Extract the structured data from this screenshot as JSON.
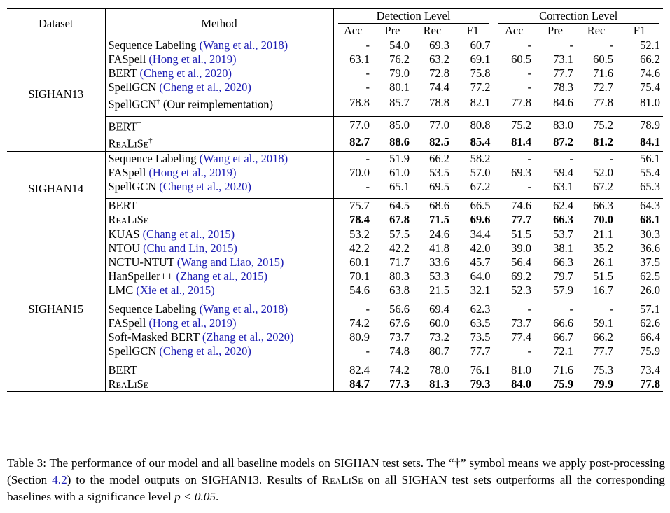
{
  "headers": {
    "dataset": "Dataset",
    "method": "Method",
    "detection": "Detection Level",
    "correction": "Correction Level",
    "metrics": [
      "Acc",
      "Pre",
      "Rec",
      "F1"
    ]
  },
  "groups": [
    {
      "name": "SIGHAN13",
      "blocks": [
        [
          {
            "method": "Sequence Labeling ",
            "cite": "(Wang et al., 2018)",
            "sup": "",
            "vals": [
              "-",
              "54.0",
              "69.3",
              "60.7",
              "-",
              "-",
              "-",
              "52.1"
            ],
            "bold": false,
            "sc": false
          },
          {
            "method": "FASpell ",
            "cite": "(Hong et al., 2019)",
            "sup": "",
            "vals": [
              "63.1",
              "76.2",
              "63.2",
              "69.1",
              "60.5",
              "73.1",
              "60.5",
              "66.2"
            ],
            "bold": false,
            "sc": false
          },
          {
            "method": "BERT ",
            "cite": "(Cheng et al., 2020)",
            "sup": "",
            "vals": [
              "-",
              "79.0",
              "72.8",
              "75.8",
              "-",
              "77.7",
              "71.6",
              "74.6"
            ],
            "bold": false,
            "sc": false
          },
          {
            "method": "SpellGCN ",
            "cite": "(Cheng et al., 2020)",
            "sup": "",
            "vals": [
              "-",
              "80.1",
              "74.4",
              "77.2",
              "-",
              "78.3",
              "72.7",
              "75.4"
            ],
            "bold": false,
            "sc": false
          },
          {
            "method": "SpellGCN",
            "cite": "",
            "sup": "†",
            "after": " (Our reimplementation)",
            "vals": [
              "78.8",
              "85.7",
              "78.8",
              "82.1",
              "77.8",
              "84.6",
              "77.8",
              "81.0"
            ],
            "bold": false,
            "sc": false
          }
        ],
        [
          {
            "method": "BERT",
            "cite": "",
            "sup": "†",
            "vals": [
              "77.0",
              "85.0",
              "77.0",
              "80.8",
              "75.2",
              "83.0",
              "75.2",
              "78.9"
            ],
            "bold": false,
            "sc": false
          },
          {
            "method": "ReaLiSe",
            "cite": "",
            "sup": "†",
            "vals": [
              "82.7",
              "88.6",
              "82.5",
              "85.4",
              "81.4",
              "87.2",
              "81.2",
              "84.1"
            ],
            "bold": true,
            "sc": true
          }
        ]
      ]
    },
    {
      "name": "SIGHAN14",
      "blocks": [
        [
          {
            "method": "Sequence Labeling ",
            "cite": "(Wang et al., 2018)",
            "sup": "",
            "vals": [
              "-",
              "51.9",
              "66.2",
              "58.2",
              "-",
              "-",
              "-",
              "56.1"
            ],
            "bold": false,
            "sc": false
          },
          {
            "method": "FASpell ",
            "cite": "(Hong et al., 2019)",
            "sup": "",
            "vals": [
              "70.0",
              "61.0",
              "53.5",
              "57.0",
              "69.3",
              "59.4",
              "52.0",
              "55.4"
            ],
            "bold": false,
            "sc": false
          },
          {
            "method": "SpellGCN ",
            "cite": "(Cheng et al., 2020)",
            "sup": "",
            "vals": [
              "-",
              "65.1",
              "69.5",
              "67.2",
              "-",
              "63.1",
              "67.2",
              "65.3"
            ],
            "bold": false,
            "sc": false
          }
        ],
        [
          {
            "method": "BERT",
            "cite": "",
            "sup": "",
            "vals": [
              "75.7",
              "64.5",
              "68.6",
              "66.5",
              "74.6",
              "62.4",
              "66.3",
              "64.3"
            ],
            "bold": false,
            "sc": false
          },
          {
            "method": "ReaLiSe",
            "cite": "",
            "sup": "",
            "vals": [
              "78.4",
              "67.8",
              "71.5",
              "69.6",
              "77.7",
              "66.3",
              "70.0",
              "68.1"
            ],
            "bold": true,
            "sc": true
          }
        ]
      ]
    },
    {
      "name": "SIGHAN15",
      "blocks": [
        [
          {
            "method": "KUAS ",
            "cite": "(Chang et al., 2015)",
            "sup": "",
            "vals": [
              "53.2",
              "57.5",
              "24.6",
              "34.4",
              "51.5",
              "53.7",
              "21.1",
              "30.3"
            ],
            "bold": false,
            "sc": false
          },
          {
            "method": "NTOU ",
            "cite": "(Chu and Lin, 2015)",
            "sup": "",
            "vals": [
              "42.2",
              "42.2",
              "41.8",
              "42.0",
              "39.0",
              "38.1",
              "35.2",
              "36.6"
            ],
            "bold": false,
            "sc": false
          },
          {
            "method": "NCTU-NTUT ",
            "cite": "(Wang and Liao, 2015)",
            "sup": "",
            "vals": [
              "60.1",
              "71.7",
              "33.6",
              "45.7",
              "56.4",
              "66.3",
              "26.1",
              "37.5"
            ],
            "bold": false,
            "sc": false
          },
          {
            "method": "HanSpeller++ ",
            "cite": "(Zhang et al., 2015)",
            "sup": "",
            "vals": [
              "70.1",
              "80.3",
              "53.3",
              "64.0",
              "69.2",
              "79.7",
              "51.5",
              "62.5"
            ],
            "bold": false,
            "sc": false
          },
          {
            "method": "LMC ",
            "cite": "(Xie et al., 2015)",
            "sup": "",
            "vals": [
              "54.6",
              "63.8",
              "21.5",
              "32.1",
              "52.3",
              "57.9",
              "16.7",
              "26.0"
            ],
            "bold": false,
            "sc": false
          }
        ],
        [
          {
            "method": "Sequence Labeling ",
            "cite": "(Wang et al., 2018)",
            "sup": "",
            "vals": [
              "-",
              "56.6",
              "69.4",
              "62.3",
              "-",
              "-",
              "-",
              "57.1"
            ],
            "bold": false,
            "sc": false
          },
          {
            "method": "FASpell ",
            "cite": "(Hong et al., 2019)",
            "sup": "",
            "vals": [
              "74.2",
              "67.6",
              "60.0",
              "63.5",
              "73.7",
              "66.6",
              "59.1",
              "62.6"
            ],
            "bold": false,
            "sc": false
          },
          {
            "method": "Soft-Masked BERT ",
            "cite": "(Zhang et al., 2020)",
            "sup": "",
            "vals": [
              "80.9",
              "73.7",
              "73.2",
              "73.5",
              "77.4",
              "66.7",
              "66.2",
              "66.4"
            ],
            "bold": false,
            "sc": false
          },
          {
            "method": "SpellGCN ",
            "cite": "(Cheng et al., 2020)",
            "sup": "",
            "vals": [
              "-",
              "74.8",
              "80.7",
              "77.7",
              "-",
              "72.1",
              "77.7",
              "75.9"
            ],
            "bold": false,
            "sc": false
          }
        ],
        [
          {
            "method": "BERT",
            "cite": "",
            "sup": "",
            "vals": [
              "82.4",
              "74.2",
              "78.0",
              "76.1",
              "81.0",
              "71.6",
              "75.3",
              "73.4"
            ],
            "bold": false,
            "sc": false
          },
          {
            "method": "ReaLiSe",
            "cite": "",
            "sup": "",
            "vals": [
              "84.7",
              "77.3",
              "81.3",
              "79.3",
              "84.0",
              "75.9",
              "79.9",
              "77.8"
            ],
            "bold": true,
            "sc": true
          }
        ]
      ]
    }
  ],
  "caption": {
    "part1": "Table 3: The performance of our model and all baseline models on SIGHAN test sets. The “†” symbol means we apply post-processing (Section ",
    "section": "4.2",
    "part2": ") to the model outputs on SIGHAN13. Results of ",
    "model": "ReaLiSe",
    "part3": " on all SIGHAN test sets outperforms all the corresponding baselines with a significance level ",
    "math": "p < 0.05",
    "part4": "."
  }
}
